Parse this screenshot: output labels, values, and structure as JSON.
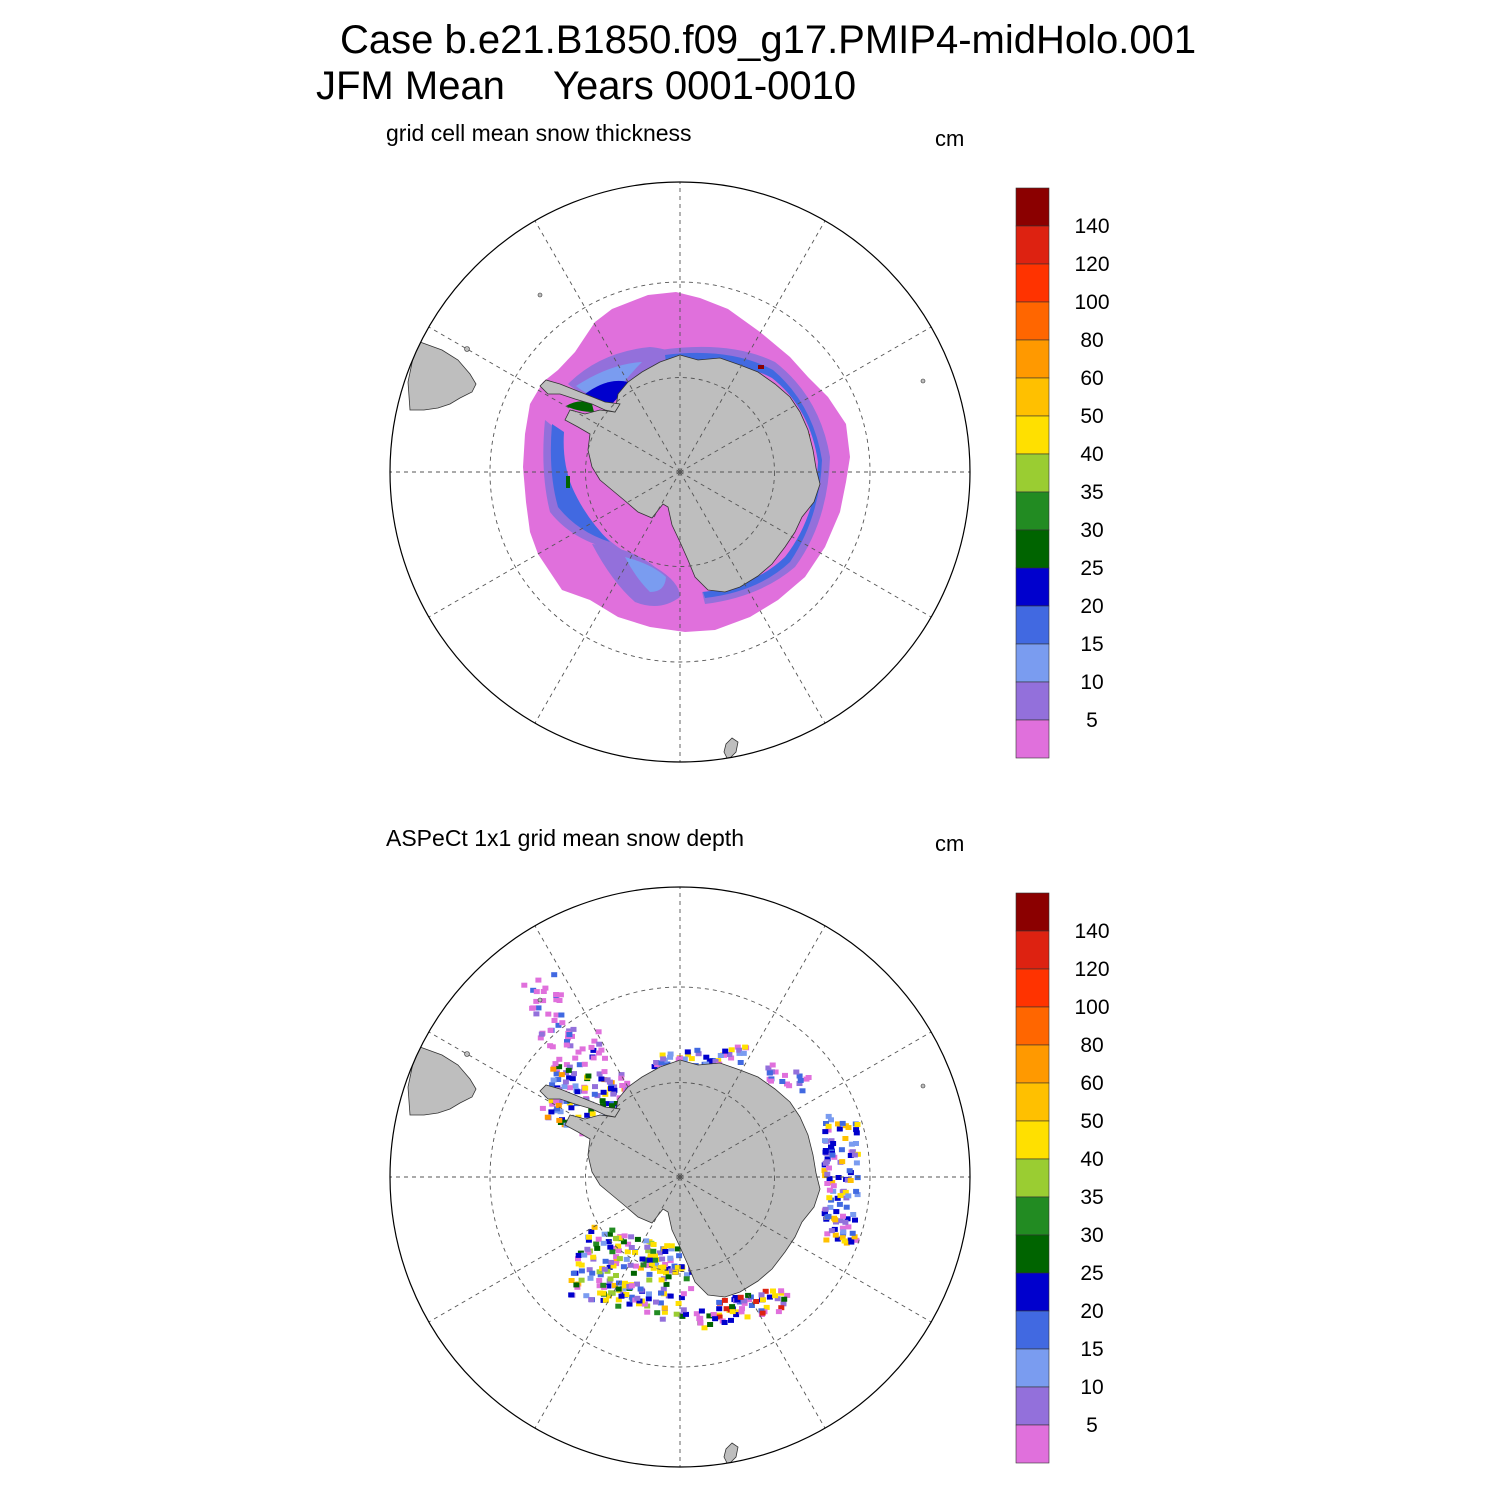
{
  "title": {
    "case": "Case b.e21.B1850.f09_g17.PMIP4-midHolo.001",
    "season": "JFM Mean",
    "years": "Years 0001-0010"
  },
  "colors": {
    "land": "#bebebe",
    "grid": "#555555"
  },
  "colorbar": {
    "labels": [
      "5",
      "10",
      "15",
      "20",
      "25",
      "30",
      "35",
      "40",
      "50",
      "60",
      "80",
      "100",
      "120",
      "140"
    ],
    "colors": [
      "#e070dc",
      "#9370db",
      "#7a9cf0",
      "#4169e1",
      "#0000cd",
      "#006400",
      "#228b22",
      "#9acd32",
      "#ffe000",
      "#ffc000",
      "#ff9900",
      "#ff6600",
      "#ff3300",
      "#dd2211",
      "#8b0000"
    ]
  },
  "panels": [
    {
      "title": "grid cell mean snow thickness",
      "units": "cm",
      "type": "model"
    },
    {
      "title": "ASPeCt 1x1 grid mean snow depth",
      "units": "cm",
      "type": "observation"
    }
  ]
}
